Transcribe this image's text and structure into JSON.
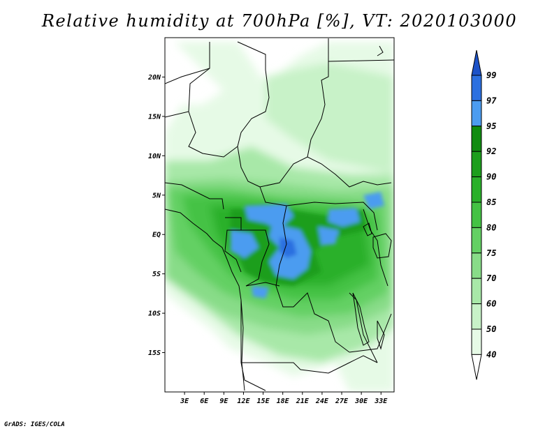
{
  "title": "Relative humidity at 700hPa [%], VT: 2020103000",
  "credit": "GrADS: IGES/COLA",
  "map": {
    "lat_ticks": [
      {
        "value": 20,
        "label": "20N"
      },
      {
        "value": 15,
        "label": "15N"
      },
      {
        "value": 10,
        "label": "10N"
      },
      {
        "value": 5,
        "label": "5N"
      },
      {
        "value": 0,
        "label": "EQ"
      },
      {
        "value": -5,
        "label": "5S"
      },
      {
        "value": -10,
        "label": "10S"
      },
      {
        "value": -15,
        "label": "15S"
      }
    ],
    "lon_ticks": [
      {
        "value": 3,
        "label": "3E"
      },
      {
        "value": 6,
        "label": "6E"
      },
      {
        "value": 9,
        "label": "9E"
      },
      {
        "value": 12,
        "label": "12E"
      },
      {
        "value": 15,
        "label": "15E"
      },
      {
        "value": 18,
        "label": "18E"
      },
      {
        "value": 21,
        "label": "21E"
      },
      {
        "value": 24,
        "label": "24E"
      },
      {
        "value": 27,
        "label": "27E"
      },
      {
        "value": 30,
        "label": "30E"
      },
      {
        "value": 33,
        "label": "33E"
      }
    ],
    "lon_range": [
      0,
      35
    ],
    "lat_range": [
      -20,
      25
    ]
  },
  "colorbar": {
    "levels": [
      "40",
      "50",
      "60",
      "70",
      "75",
      "80",
      "85",
      "90",
      "92",
      "95",
      "97",
      "99"
    ],
    "colors": [
      "#ffffff",
      "#e6fae6",
      "#c8f2c8",
      "#a8e8a8",
      "#88dc88",
      "#64d064",
      "#44c244",
      "#2ab02a",
      "#1c9e1c",
      "#108c10",
      "#4c9cf0",
      "#2c70e0",
      "#1c52c8"
    ]
  }
}
